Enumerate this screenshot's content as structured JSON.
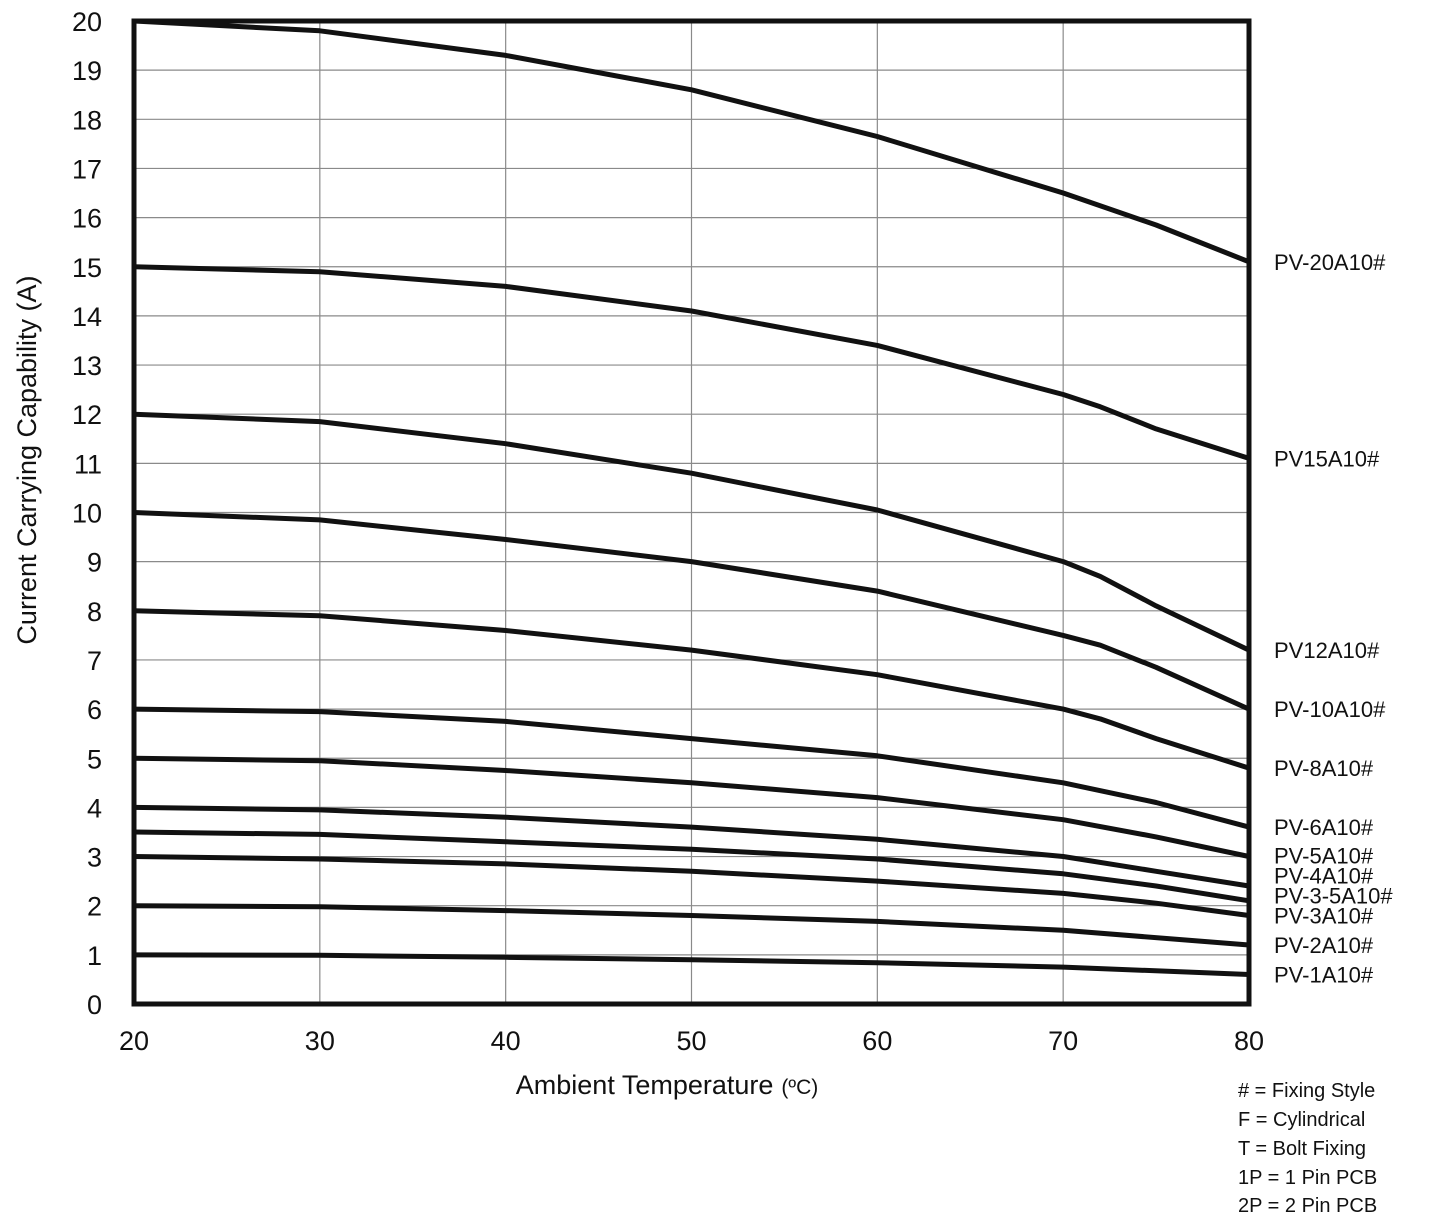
{
  "chart_data": {
    "type": "line",
    "xlabel": "Ambient Temperature",
    "xlabel_unit": "(ºC)",
    "ylabel": "Current Carrying Capability (A)",
    "xlim": [
      20,
      80
    ],
    "ylim": [
      0,
      20
    ],
    "x_ticks": [
      "20",
      "30",
      "40",
      "50",
      "60",
      "70",
      "80"
    ],
    "y_ticks": [
      "0",
      "1",
      "2",
      "3",
      "4",
      "5",
      "6",
      "7",
      "8",
      "9",
      "10",
      "11",
      "12",
      "13",
      "14",
      "15",
      "16",
      "17",
      "18",
      "19",
      "20"
    ],
    "grid": true,
    "line_color": "#111111",
    "series": [
      {
        "name": "PV-20A10#",
        "points": [
          [
            20,
            20.0
          ],
          [
            30,
            19.8
          ],
          [
            40,
            19.3
          ],
          [
            50,
            18.6
          ],
          [
            60,
            17.65
          ],
          [
            70,
            16.5
          ],
          [
            75,
            15.85
          ],
          [
            80,
            15.1
          ]
        ]
      },
      {
        "name": "PV15A10#",
        "points": [
          [
            20,
            15.0
          ],
          [
            30,
            14.9
          ],
          [
            40,
            14.6
          ],
          [
            50,
            14.1
          ],
          [
            60,
            13.4
          ],
          [
            70,
            12.4
          ],
          [
            72,
            12.15
          ],
          [
            75,
            11.7
          ],
          [
            80,
            11.1
          ]
        ]
      },
      {
        "name": "PV12A10#",
        "points": [
          [
            20,
            12.0
          ],
          [
            30,
            11.85
          ],
          [
            40,
            11.4
          ],
          [
            50,
            10.8
          ],
          [
            60,
            10.05
          ],
          [
            70,
            9.0
          ],
          [
            72,
            8.7
          ],
          [
            75,
            8.1
          ],
          [
            80,
            7.2
          ]
        ]
      },
      {
        "name": "PV-10A10#",
        "points": [
          [
            20,
            10.0
          ],
          [
            30,
            9.85
          ],
          [
            40,
            9.45
          ],
          [
            50,
            9.0
          ],
          [
            60,
            8.4
          ],
          [
            70,
            7.5
          ],
          [
            72,
            7.3
          ],
          [
            75,
            6.85
          ],
          [
            80,
            6.0
          ]
        ]
      },
      {
        "name": "PV-8A10#",
        "points": [
          [
            20,
            8.0
          ],
          [
            30,
            7.9
          ],
          [
            40,
            7.6
          ],
          [
            50,
            7.2
          ],
          [
            60,
            6.7
          ],
          [
            70,
            6.0
          ],
          [
            72,
            5.8
          ],
          [
            75,
            5.4
          ],
          [
            80,
            4.8
          ]
        ]
      },
      {
        "name": "PV-6A10#",
        "points": [
          [
            20,
            6.0
          ],
          [
            30,
            5.95
          ],
          [
            40,
            5.75
          ],
          [
            50,
            5.4
          ],
          [
            60,
            5.05
          ],
          [
            70,
            4.5
          ],
          [
            75,
            4.1
          ],
          [
            80,
            3.6
          ]
        ]
      },
      {
        "name": "PV-5A10#",
        "points": [
          [
            20,
            5.0
          ],
          [
            30,
            4.95
          ],
          [
            40,
            4.75
          ],
          [
            50,
            4.5
          ],
          [
            60,
            4.2
          ],
          [
            70,
            3.75
          ],
          [
            75,
            3.4
          ],
          [
            80,
            3.0
          ]
        ]
      },
      {
        "name": "PV-4A10#",
        "points": [
          [
            20,
            4.0
          ],
          [
            30,
            3.95
          ],
          [
            40,
            3.8
          ],
          [
            50,
            3.6
          ],
          [
            60,
            3.35
          ],
          [
            70,
            3.0
          ],
          [
            75,
            2.7
          ],
          [
            80,
            2.4
          ]
        ]
      },
      {
        "name": "PV-3-5A10#",
        "points": [
          [
            20,
            3.5
          ],
          [
            30,
            3.45
          ],
          [
            40,
            3.3
          ],
          [
            50,
            3.15
          ],
          [
            60,
            2.95
          ],
          [
            70,
            2.65
          ],
          [
            75,
            2.4
          ],
          [
            80,
            2.1
          ]
        ]
      },
      {
        "name": "PV-3A10#",
        "points": [
          [
            20,
            3.0
          ],
          [
            30,
            2.95
          ],
          [
            40,
            2.85
          ],
          [
            50,
            2.7
          ],
          [
            60,
            2.5
          ],
          [
            70,
            2.25
          ],
          [
            75,
            2.05
          ],
          [
            80,
            1.8
          ]
        ]
      },
      {
        "name": "PV-2A10#",
        "points": [
          [
            20,
            2.0
          ],
          [
            30,
            1.98
          ],
          [
            40,
            1.9
          ],
          [
            50,
            1.8
          ],
          [
            60,
            1.68
          ],
          [
            70,
            1.5
          ],
          [
            80,
            1.2
          ]
        ]
      },
      {
        "name": "PV-1A10#",
        "points": [
          [
            20,
            1.0
          ],
          [
            30,
            0.99
          ],
          [
            40,
            0.95
          ],
          [
            50,
            0.9
          ],
          [
            60,
            0.84
          ],
          [
            70,
            0.75
          ],
          [
            80,
            0.6
          ]
        ]
      }
    ]
  },
  "notes": [
    "# = Fixing Style",
    "F = Cylindrical",
    "T = Bolt Fixing",
    "1P = 1 Pin PCB",
    "2P = 2 Pin PCB"
  ]
}
